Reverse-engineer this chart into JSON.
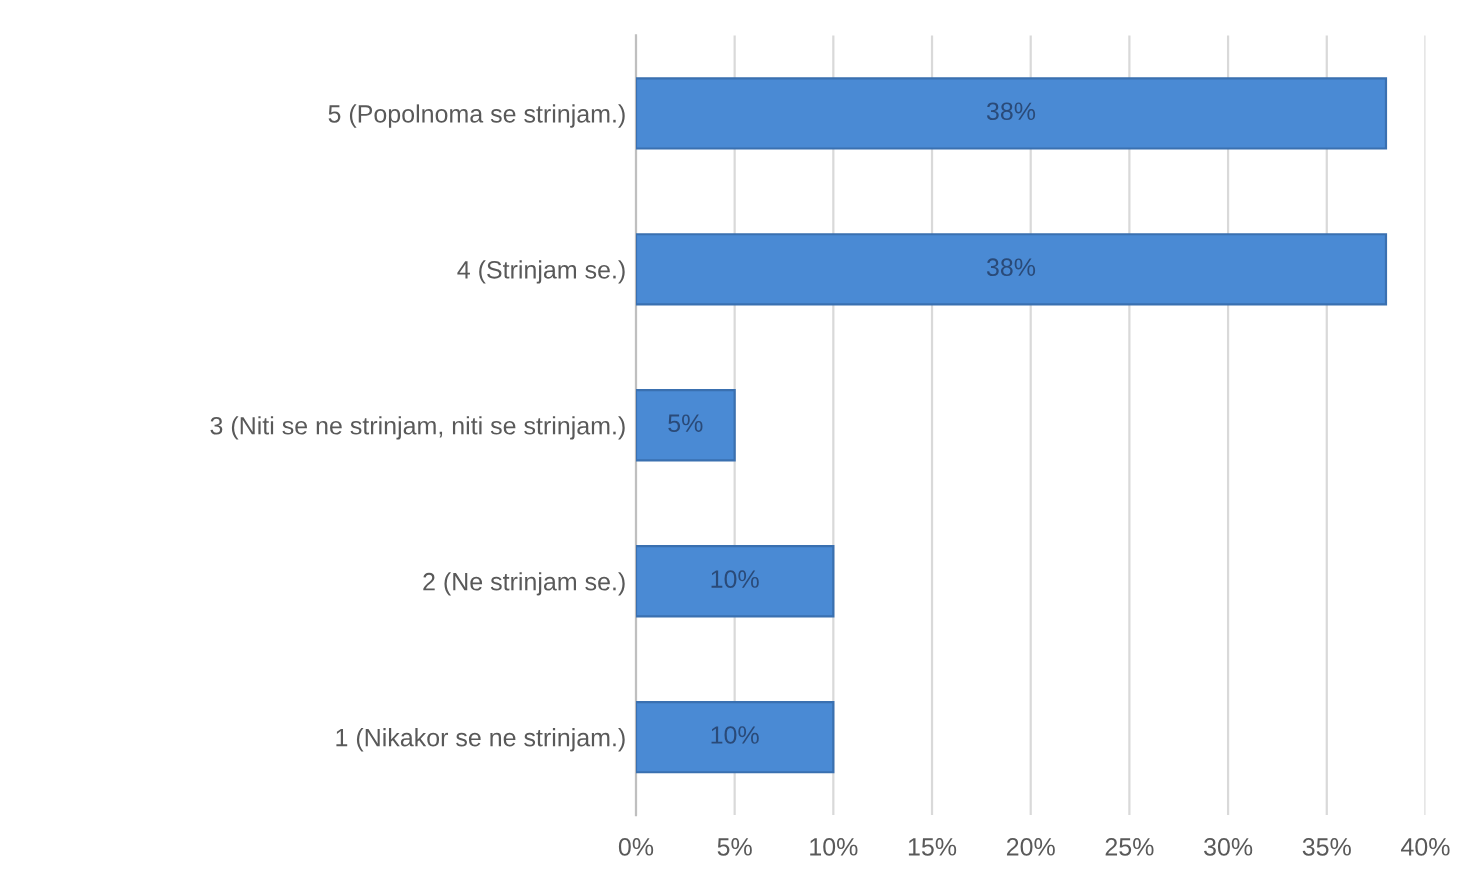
{
  "chart_data": {
    "type": "bar",
    "orientation": "horizontal",
    "categories": [
      "5 (Popolnoma se strinjam.)",
      "4 (Strinjam se.)",
      "3 (Niti se ne strinjam, niti se strinjam.)",
      "2 (Ne strinjam se.)",
      "1 (Nikakor se ne strinjam.)"
    ],
    "values": [
      38,
      38,
      5,
      10,
      10
    ],
    "value_labels": [
      "38%",
      "38%",
      "5%",
      "10%",
      "10%"
    ],
    "color": "#4a8ad4",
    "xlim": [
      0,
      40
    ],
    "xticks": [
      {
        "value": 0,
        "label": "0%"
      },
      {
        "value": 5,
        "label": "5%"
      },
      {
        "value": 10,
        "label": "10%"
      },
      {
        "value": 15,
        "label": "15%"
      },
      {
        "value": 20,
        "label": "20%"
      },
      {
        "value": 25,
        "label": "25%"
      },
      {
        "value": 30,
        "label": "30%"
      },
      {
        "value": 35,
        "label": "35%"
      },
      {
        "value": 40,
        "label": "40%"
      }
    ],
    "grid": "x",
    "legend": false
  }
}
